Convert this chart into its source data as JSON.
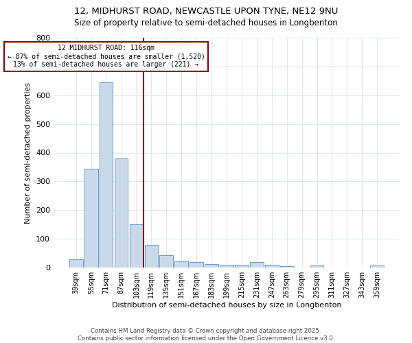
{
  "title1": "12, MIDHURST ROAD, NEWCASTLE UPON TYNE, NE12 9NU",
  "title2": "Size of property relative to semi-detached houses in Longbenton",
  "xlabel": "Distribution of semi-detached houses by size in Longbenton",
  "ylabel": "Number of semi-detached properties",
  "footer1": "Contains HM Land Registry data © Crown copyright and database right 2025.",
  "footer2": "Contains public sector information licensed under the Open Government Licence v3.0.",
  "bin_labels": [
    "39sqm",
    "55sqm",
    "71sqm",
    "87sqm",
    "103sqm",
    "119sqm",
    "135sqm",
    "151sqm",
    "167sqm",
    "183sqm",
    "199sqm",
    "215sqm",
    "231sqm",
    "247sqm",
    "263sqm",
    "279sqm",
    "295sqm",
    "311sqm",
    "327sqm",
    "343sqm",
    "359sqm"
  ],
  "bar_values": [
    28,
    345,
    645,
    380,
    150,
    80,
    42,
    22,
    18,
    13,
    10,
    10,
    18,
    10,
    5,
    0,
    7,
    0,
    0,
    0,
    7
  ],
  "bar_color": "#cad9ea",
  "bar_edge_color": "#6699cc",
  "grid_color": "#dce8f0",
  "vline_color": "#8b0000",
  "annotation_box_color": "white",
  "annotation_box_edge": "#8b0000",
  "ylim": [
    0,
    800
  ],
  "yticks": [
    0,
    100,
    200,
    300,
    400,
    500,
    600,
    700,
    800
  ]
}
